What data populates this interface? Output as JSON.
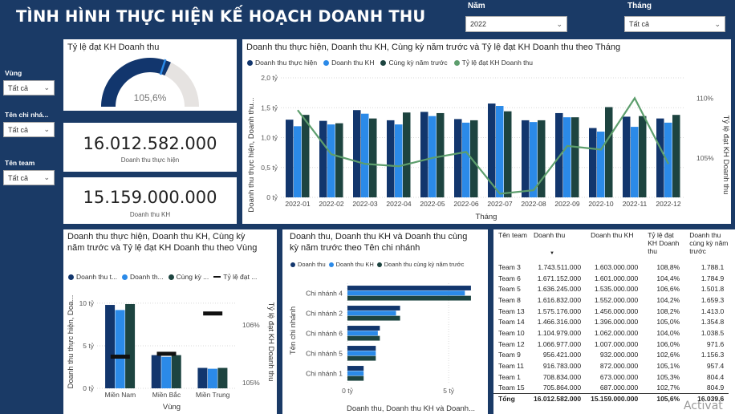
{
  "header": {
    "title": "TÌNH HÌNH THỰC HIỆN KẾ HOẠCH DOANH THU"
  },
  "filters": {
    "year": {
      "label": "Năm",
      "value": "2022"
    },
    "month": {
      "label": "Tháng",
      "value": "Tất cả"
    },
    "region": {
      "label": "Vùng",
      "value": "Tất cả"
    },
    "branch": {
      "label": "Tên chi nhá...",
      "value": "Tất cả"
    },
    "team": {
      "label": "Tên team",
      "value": "Tất cả"
    }
  },
  "colors": {
    "actual": "#12366d",
    "plan": "#2b8ae8",
    "prev_year": "#1d4440",
    "ratio": "#5d9e6d",
    "header_bg": "#1a3a66"
  },
  "gauge": {
    "title": "Tỷ lệ đạt KH Doanh thu",
    "value_text": "105,6%",
    "fill_fraction": 0.64,
    "target_fraction": 0.6
  },
  "kpi_actual": {
    "value": "16.012.582.000",
    "label": "Doanh thu thực hiện"
  },
  "kpi_plan": {
    "value": "15.159.000.000",
    "label": "Doanh thu KH"
  },
  "monthly": {
    "title": "Doanh thu thực hiện, Doanh thu KH, Cùng kỳ năm trước và Tỷ lệ đạt KH Doanh thu theo Tháng",
    "legend": [
      "Doanh thu thực hiện",
      "Doanh thu KH",
      "Cùng kỳ năm trước",
      "Tỷ lệ đạt KH Doanh thu"
    ],
    "ylabel": "Doanh thu thực hiện, Doanh thu...",
    "y2label": "Tỷ lệ đạt KH Doanh thu",
    "xlabel": "Tháng",
    "y_ticks": [
      "0 tỷ",
      "0,5 tỷ",
      "1,0 tỷ",
      "1,5 tỷ",
      "2,0 tỷ"
    ],
    "y2_ticks": [
      "110%",
      "105%"
    ]
  },
  "region_chart": {
    "title": "Doanh thu thực hiện, Doanh thu KH, Cùng kỳ năm trước và Tỷ lệ đạt KH Doanh thu theo Vùng",
    "legend": [
      "Doanh thu t...",
      "Doanh th...",
      "Cùng kỳ ...",
      "Tỷ lệ đạt ..."
    ],
    "ylabel": "Doanh thu thực hiện, Doa...",
    "y2label": "Tỷ lệ đạt KH Doanh thu",
    "xlabel": "Vùng",
    "y_ticks": [
      "0 tỷ",
      "5 tỷ",
      "10 tỷ"
    ],
    "y2_ticks": [
      "106%",
      "105%"
    ]
  },
  "branch_chart": {
    "title": "Doanh thu, Doanh thu KH và Doanh thu cùng kỳ năm trước theo Tên chi nhánh",
    "legend": [
      "Doanh thu",
      "Doanh thu KH",
      "Doanh thu cùng kỳ năm trước"
    ],
    "ylabel": "Tên chi nhánh",
    "xlabel": "Doanh thu, Doanh thu KH và Doanh...",
    "x_ticks": [
      "0 tỷ",
      "5 tỷ"
    ]
  },
  "chart_data": [
    {
      "type": "bar",
      "name": "monthly",
      "categories": [
        "2022-01",
        "2022-02",
        "2022-03",
        "2022-04",
        "2022-05",
        "2022-06",
        "2022-07",
        "2022-08",
        "2022-09",
        "2022-10",
        "2022-11",
        "2022-12"
      ],
      "series": [
        {
          "name": "Doanh thu thực hiện",
          "values": [
            1.3,
            1.28,
            1.46,
            1.29,
            1.43,
            1.31,
            1.57,
            1.29,
            1.41,
            1.16,
            1.35,
            1.32
          ]
        },
        {
          "name": "Doanh thu KH",
          "values": [
            1.19,
            1.22,
            1.4,
            1.22,
            1.36,
            1.25,
            1.53,
            1.26,
            1.34,
            1.1,
            1.18,
            1.25
          ]
        },
        {
          "name": "Cùng kỳ năm trước",
          "values": [
            1.38,
            1.24,
            1.32,
            1.42,
            1.41,
            1.29,
            1.44,
            1.29,
            1.34,
            1.51,
            1.36,
            1.38
          ]
        }
      ],
      "ratio_line": {
        "name": "Tỷ lệ đạt KH Doanh thu",
        "values": [
          109.0,
          105.3,
          104.5,
          104.3,
          105.0,
          105.5,
          102.0,
          102.3,
          106.0,
          105.7,
          110.0,
          104.5
        ]
      },
      "ylim": [
        0,
        2.0
      ],
      "y2lim": [
        101.7,
        111.7
      ]
    },
    {
      "type": "bar",
      "name": "region",
      "categories": [
        "Miền Nam",
        "Miền Bắc",
        "Miền Trung"
      ],
      "series": [
        {
          "name": "Doanh thu thực hiện",
          "values": [
            9.8,
            3.9,
            2.4
          ]
        },
        {
          "name": "Doanh thu KH",
          "values": [
            9.2,
            3.7,
            2.3
          ]
        },
        {
          "name": "Cùng kỳ năm trước",
          "values": [
            9.9,
            3.9,
            2.4
          ]
        }
      ],
      "ratio_line": {
        "name": "Tỷ lệ đạt KH Doanh thu",
        "values": [
          105.45,
          105.5,
          106.2
        ]
      },
      "ylim": [
        0,
        11.5
      ],
      "y2lim": [
        104.9,
        106.6
      ]
    },
    {
      "type": "bar",
      "name": "branch",
      "orientation": "horizontal",
      "categories": [
        "Chi nhánh 4",
        "Chi nhánh 2",
        "Chi nhánh 6",
        "Chi nhánh 5",
        "Chi nhánh 1"
      ],
      "series": [
        {
          "name": "Doanh thu",
          "values": [
            6.1,
            2.6,
            1.6,
            1.4,
            0.8
          ]
        },
        {
          "name": "Doanh thu KH",
          "values": [
            5.8,
            2.4,
            1.5,
            1.4,
            0.8
          ]
        },
        {
          "name": "Doanh thu cùng kỳ năm trước",
          "values": [
            6.1,
            2.6,
            1.6,
            1.4,
            0.8
          ]
        }
      ],
      "xlim": [
        0,
        6.5
      ]
    }
  ],
  "team_table": {
    "headers": [
      "Tên team",
      "Doanh thu",
      "Doanh thu KH",
      "Tỷ lệ đạt KH Doanh thu",
      "Doanh thu cùng kỳ năm trước"
    ],
    "rows": [
      [
        "Team 3",
        "1.743.511.000",
        "1.603.000.000",
        "108,8%",
        "1.788.1"
      ],
      [
        "Team 6",
        "1.671.152.000",
        "1.601.000.000",
        "104,4%",
        "1.784.9"
      ],
      [
        "Team 5",
        "1.636.245.000",
        "1.535.000.000",
        "106,6%",
        "1.501.8"
      ],
      [
        "Team 8",
        "1.616.832.000",
        "1.552.000.000",
        "104,2%",
        "1.659.3"
      ],
      [
        "Team 13",
        "1.575.176.000",
        "1.456.000.000",
        "108,2%",
        "1.413.0"
      ],
      [
        "Team 14",
        "1.466.316.000",
        "1.396.000.000",
        "105,0%",
        "1.354.8"
      ],
      [
        "Team 10",
        "1.104.979.000",
        "1.062.000.000",
        "104,0%",
        "1.038.5"
      ],
      [
        "Team 12",
        "1.066.977.000",
        "1.007.000.000",
        "106,0%",
        "971.6"
      ],
      [
        "Team 9",
        "956.421.000",
        "932.000.000",
        "102,6%",
        "1.156.3"
      ],
      [
        "Team 11",
        "916.783.000",
        "872.000.000",
        "105,1%",
        "957.4"
      ],
      [
        "Team 1",
        "708.834.000",
        "673.000.000",
        "105,3%",
        "804.4"
      ],
      [
        "Team 15",
        "705.864.000",
        "687.000.000",
        "102,7%",
        "804.9"
      ]
    ],
    "total": [
      "Tổng",
      "16.012.582.000",
      "15.159.000.000",
      "105,6%",
      "16.039.6"
    ]
  },
  "watermark": "Activat"
}
